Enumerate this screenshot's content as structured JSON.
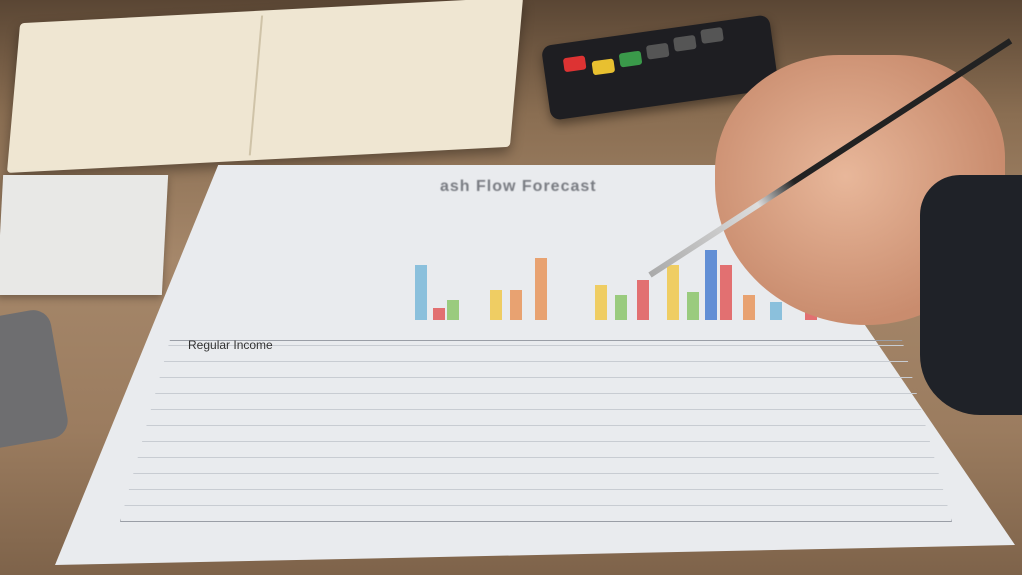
{
  "document": {
    "title": "ash Flow Forecast",
    "table_heading": "Regular Income"
  },
  "scene": {
    "objects": [
      "notebook-icon",
      "calculator-icon",
      "receipt-icon",
      "pen-icon",
      "hand-icon"
    ]
  },
  "colors": {
    "desk": "#9b7c5f",
    "paper": "#e9ebee",
    "bar_orange": "#e8955a",
    "bar_blue": "#4a7fd0",
    "bar_yellow": "#f0c84a",
    "bar_red": "#e05a5a",
    "bar_green": "#8cc66a",
    "bar_teal": "#7ab8d8"
  }
}
